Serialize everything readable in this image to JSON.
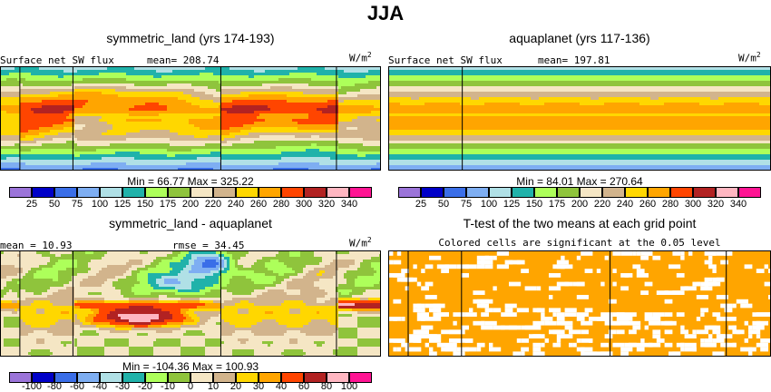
{
  "title": "JJA",
  "panels": {
    "p1": {
      "title": "symmetric_land (yrs 174-193)",
      "label": "Surface net SW flux",
      "mean": "mean= 208.74",
      "units": "W/m",
      "units_sup": "2",
      "minmax": "Min =  66.77 Max = 325.22"
    },
    "p2": {
      "title": "aquaplanet (yrs 117-136)",
      "label": "Surface net SW flux",
      "mean": "mean= 197.81",
      "units": "W/m",
      "units_sup": "2",
      "minmax": "Min =  84.01 Max = 270.64"
    },
    "p3": {
      "title": "symmetric_land - aquaplanet",
      "mean": "mean =  10.93",
      "rmse": "rmse =  34.45",
      "units": "W/m",
      "units_sup": "2",
      "minmax": "Min = -104.36 Max = 100.93"
    },
    "p4": {
      "title": "T-test of the two means at each grid point",
      "subtitle": "Colored cells are significant at the 0.05 level"
    }
  },
  "colorbar_abs": {
    "colors": [
      "#9b74d9",
      "#0000c8",
      "#3a6ee8",
      "#7eaef2",
      "#b0e0e6",
      "#20b2aa",
      "#adff5a",
      "#8fc43c",
      "#f5e6c4",
      "#d2b48c",
      "#ffd700",
      "#ffa500",
      "#ff4500",
      "#b22222",
      "#ffb6c1",
      "#ff1493"
    ],
    "ticks": [
      "25",
      "50",
      "75",
      "100",
      "125",
      "150",
      "175",
      "200",
      "220",
      "240",
      "260",
      "280",
      "300",
      "320",
      "340"
    ]
  },
  "colorbar_diff": {
    "colors": [
      "#9b74d9",
      "#0000c8",
      "#3a6ee8",
      "#7eaef2",
      "#b0e0e6",
      "#20b2aa",
      "#adff5a",
      "#8fc43c",
      "#f5e6c4",
      "#d2b48c",
      "#ffd700",
      "#ffa500",
      "#ff4500",
      "#b22222",
      "#ffb6c1",
      "#ff1493"
    ],
    "ticks": [
      "-100",
      "-80",
      "-60",
      "-40",
      "-30",
      "-20",
      "-10",
      "0",
      "10",
      "20",
      "30",
      "40",
      "60",
      "80",
      "100"
    ]
  },
  "chart_data": [
    {
      "type": "heatmap",
      "title": "symmetric_land (yrs 174-193)",
      "variable": "Surface net SW flux",
      "units": "W/m2",
      "mean": 208.74,
      "min": 66.77,
      "max": 325.22,
      "contour_levels": [
        25,
        50,
        75,
        100,
        125,
        150,
        175,
        200,
        220,
        240,
        260,
        280,
        300,
        320,
        340
      ]
    },
    {
      "type": "heatmap",
      "title": "aquaplanet (yrs 117-136)",
      "variable": "Surface net SW flux",
      "units": "W/m2",
      "mean": 197.81,
      "min": 84.01,
      "max": 270.64,
      "contour_levels": [
        25,
        50,
        75,
        100,
        125,
        150,
        175,
        200,
        220,
        240,
        260,
        280,
        300,
        320,
        340
      ]
    },
    {
      "type": "heatmap",
      "title": "symmetric_land - aquaplanet",
      "units": "W/m2",
      "mean": 10.93,
      "rmse": 34.45,
      "min": -104.36,
      "max": 100.93,
      "contour_levels": [
        -100,
        -80,
        -60,
        -40,
        -30,
        -20,
        -10,
        0,
        10,
        20,
        30,
        40,
        60,
        80,
        100
      ]
    },
    {
      "type": "heatmap",
      "title": "T-test of the two means at each grid point",
      "note": "Colored cells are significant at the 0.05 level",
      "colors": {
        "significant": "#ffa500",
        "not_significant": "#ffffff"
      }
    }
  ]
}
